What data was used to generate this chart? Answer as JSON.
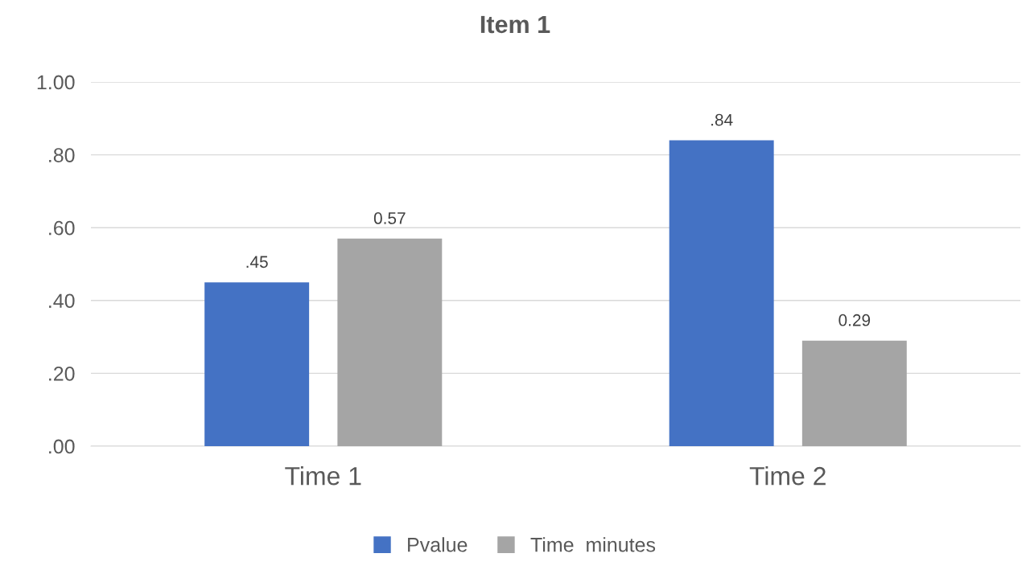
{
  "chart_data": {
    "type": "bar",
    "title": "Item 1",
    "categories": [
      "Time 1",
      "Time 2"
    ],
    "series": [
      {
        "name": "Pvalue",
        "color": "#4472c4",
        "values": [
          0.45,
          0.84
        ],
        "value_labels": [
          ".45",
          ".84"
        ]
      },
      {
        "name": "Time  minutes",
        "color": "#a5a5a5",
        "values": [
          0.57,
          0.29
        ],
        "value_labels": [
          "0.57",
          "0.29"
        ]
      }
    ],
    "ylim": [
      0,
      1
    ],
    "yticks": [
      {
        "value": 0,
        "label": ".00"
      },
      {
        "value": 0.2,
        "label": ".20"
      },
      {
        "value": 0.4,
        "label": ".40"
      },
      {
        "value": 0.6,
        "label": ".60"
      },
      {
        "value": 0.8,
        "label": ".80"
      },
      {
        "value": 1,
        "label": "1.00"
      }
    ],
    "grid": "y",
    "legend": "bottom"
  }
}
